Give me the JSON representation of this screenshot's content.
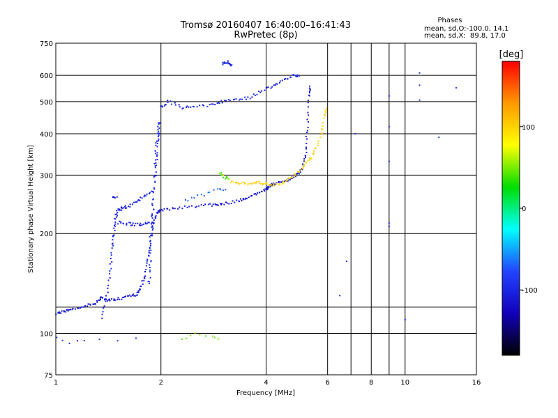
{
  "chart_data": {
    "type": "scatter",
    "title": "Tromsø 20160407 16:40:00–16:41:43",
    "subtitle": "RwPretec (8p)",
    "xlabel": "Frequency [MHz]",
    "ylabel": "Stationary phase Virtual Height [km]",
    "x_scale": "log",
    "y_scale": "log",
    "xlim": [
      1,
      16
    ],
    "ylim": [
      75,
      750
    ],
    "x_ticks": [
      1,
      2,
      4,
      6,
      8,
      10,
      16
    ],
    "x_grid": [
      1,
      2,
      4,
      6,
      8,
      10,
      16
    ],
    "x_minor_lines": [
      7,
      9
    ],
    "y_ticks": [
      75,
      100,
      200,
      300,
      400,
      500,
      600,
      750
    ],
    "y_grid": [
      100,
      120,
      200,
      300,
      400,
      500,
      600
    ],
    "grid": true,
    "stats": {
      "heading": "Phases",
      "line1": "mean, sd,O:-100.0, 14.1",
      "line2": "mean, sd,X:  89.8, 17.0"
    },
    "colorbar": {
      "label": "[deg]",
      "range": [
        -180,
        180
      ],
      "ticks": [
        100,
        0,
        -100
      ],
      "position": "right",
      "stops": [
        "#ff0000",
        "#ff9900",
        "#ffff00",
        "#00dd00",
        "#00ffff",
        "#2244ff",
        "#1100bb",
        "#000000"
      ]
    },
    "series": [
      {
        "trace": [
          [
            1.0,
            115
          ],
          [
            1.05,
            116
          ],
          [
            1.1,
            118
          ],
          [
            1.2,
            121
          ],
          [
            1.3,
            123
          ],
          [
            1.35,
            128
          ],
          [
            1.4,
            126
          ],
          [
            1.5,
            127
          ],
          [
            1.6,
            129
          ],
          [
            1.7,
            131
          ],
          [
            1.75,
            136
          ],
          [
            1.8,
            150
          ],
          [
            1.85,
            175
          ],
          [
            1.9,
            210
          ],
          [
            1.95,
            232
          ],
          [
            2.0,
            236
          ],
          [
            2.2,
            238
          ],
          [
            2.5,
            242
          ],
          [
            2.8,
            244
          ],
          [
            3.0,
            246
          ],
          [
            3.3,
            250
          ],
          [
            3.5,
            256
          ],
          [
            3.8,
            264
          ],
          [
            4.0,
            272
          ],
          [
            4.1,
            280
          ],
          [
            4.2,
            282
          ],
          [
            4.4,
            285
          ],
          [
            4.6,
            290
          ],
          [
            4.8,
            296
          ],
          [
            5.0,
            305
          ],
          [
            5.1,
            318
          ],
          [
            5.2,
            350
          ],
          [
            5.25,
            420
          ],
          [
            5.3,
            520
          ],
          [
            5.35,
            560
          ]
        ],
        "phase": -110,
        "spread": 0.018,
        "density": 8
      },
      {
        "trace": [
          [
            1.35,
            112
          ],
          [
            1.4,
            130
          ],
          [
            1.43,
            155
          ],
          [
            1.45,
            180
          ],
          [
            1.47,
            200
          ],
          [
            1.48,
            220
          ],
          [
            1.5,
            235
          ],
          [
            1.55,
            238
          ],
          [
            1.6,
            241
          ],
          [
            1.7,
            248
          ],
          [
            1.8,
            260
          ],
          [
            1.9,
            270
          ]
        ],
        "phase": -100,
        "spread": 0.02,
        "density": 7
      },
      {
        "trace": [
          [
            1.5,
            216
          ],
          [
            1.6,
            214
          ],
          [
            1.7,
            213
          ],
          [
            1.8,
            214
          ],
          [
            1.9,
            215
          ]
        ],
        "phase": -105,
        "spread": 0.02,
        "density": 7
      },
      {
        "trace": [
          [
            1.45,
            258
          ],
          [
            1.5,
            256
          ]
        ],
        "phase": -115,
        "spread": 0.02,
        "density": 5
      },
      {
        "trace": [
          [
            1.85,
            140
          ],
          [
            1.87,
            190
          ],
          [
            1.9,
            240
          ],
          [
            1.93,
            320
          ],
          [
            1.95,
            380
          ],
          [
            1.98,
            440
          ]
        ],
        "phase": -95,
        "spread": 0.03,
        "density": 16
      },
      {
        "trace": [
          [
            2.0,
            480
          ],
          [
            2.1,
            500
          ],
          [
            2.3,
            480
          ],
          [
            2.5,
            480
          ],
          [
            2.8,
            490
          ],
          [
            3.0,
            500
          ],
          [
            3.3,
            505
          ],
          [
            3.6,
            515
          ],
          [
            3.9,
            540
          ],
          [
            4.2,
            560
          ],
          [
            4.5,
            580
          ],
          [
            4.8,
            600
          ],
          [
            5.0,
            600
          ]
        ],
        "phase": -100,
        "spread": 0.02,
        "density": 7
      },
      {
        "trace": [
          [
            3.0,
            650
          ],
          [
            3.1,
            660
          ],
          [
            3.2,
            640
          ]
        ],
        "phase": -100,
        "spread": 0.02,
        "density": 8
      },
      {
        "trace": [
          [
            2.35,
            252
          ],
          [
            2.6,
            262
          ],
          [
            2.9,
            270
          ],
          [
            3.1,
            268
          ]
        ],
        "phase": -70,
        "spread": 0.03,
        "density": 5
      },
      {
        "trace": [
          [
            3.0,
            300
          ],
          [
            3.2,
            285
          ],
          [
            3.4,
            283
          ],
          [
            3.6,
            282
          ],
          [
            3.8,
            284
          ],
          [
            4.0,
            282
          ],
          [
            4.2,
            280
          ],
          [
            4.4,
            283
          ],
          [
            4.6,
            290
          ],
          [
            4.8,
            300
          ],
          [
            5.0,
            310
          ],
          [
            5.2,
            325
          ],
          [
            5.4,
            340
          ],
          [
            5.6,
            370
          ],
          [
            5.8,
            410
          ],
          [
            5.9,
            460
          ],
          [
            5.95,
            480
          ]
        ],
        "phase": 100,
        "spread": 0.02,
        "density": 6
      },
      {
        "trace": [
          [
            2.95,
            305
          ],
          [
            3.05,
            295
          ],
          [
            3.15,
            292
          ]
        ],
        "phase": 40,
        "spread": 0.02,
        "density": 5
      },
      {
        "trace": [
          [
            1.0,
            98
          ],
          [
            1.1,
            94
          ],
          [
            1.2,
            96
          ],
          [
            1.5,
            95
          ],
          [
            1.9,
            97
          ]
        ],
        "phase": -95,
        "spread": 0.02,
        "density": 2
      },
      {
        "trace": [
          [
            2.3,
            96
          ],
          [
            2.5,
            100
          ],
          [
            2.8,
            98
          ],
          [
            3.0,
            96
          ]
        ],
        "phase": 45,
        "spread": 0.02,
        "density": 3
      },
      {
        "trace": [
          [
            9.0,
            520
          ],
          [
            9.0,
            420
          ],
          [
            9.0,
            330
          ],
          [
            9.0,
            215
          ],
          [
            9.0,
            210
          ],
          [
            11.0,
            610
          ],
          [
            11.0,
            560
          ],
          [
            11.0,
            505
          ],
          [
            12.5,
            390
          ],
          [
            14.0,
            550
          ],
          [
            6.5,
            130
          ],
          [
            6.8,
            165
          ],
          [
            7.2,
            400
          ],
          [
            10.0,
            110
          ]
        ],
        "phase": -100,
        "spread": 0.005,
        "density": 1
      }
    ]
  }
}
